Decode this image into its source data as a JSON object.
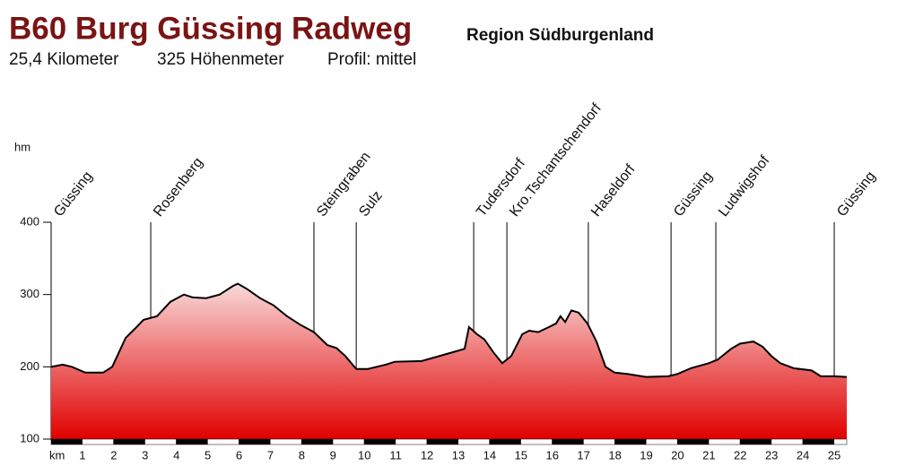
{
  "chart_data": {
    "type": "area",
    "title": "B60 Burg Güssing Radweg",
    "region": "Region Südburgenland",
    "stats": [
      "25,4 Kilometer",
      "325 Höhenmeter",
      "Profil: mittel"
    ],
    "y_label": "hm",
    "x_label": "km",
    "x": [
      0,
      0.37,
      0.66,
      1.09,
      1.66,
      1.95,
      2.38,
      2.66,
      2.95,
      3.38,
      3.81,
      4.24,
      4.52,
      4.95,
      5.38,
      5.81,
      5.96,
      6.24,
      6.67,
      7.1,
      7.53,
      7.96,
      8.39,
      8.82,
      9.11,
      9.39,
      9.74,
      10.11,
      10.68,
      10.97,
      11.83,
      12.4,
      12.97,
      13.2,
      13.34,
      13.6,
      13.83,
      14.12,
      14.4,
      14.69,
      15.04,
      15.26,
      15.55,
      15.89,
      16.12,
      16.26,
      16.41,
      16.61,
      16.84,
      17.12,
      17.41,
      17.7,
      17.99,
      18.41,
      18.99,
      19.7,
      19.99,
      20.42,
      20.99,
      21.28,
      21.71,
      21.99,
      22.42,
      22.71,
      22.99,
      23.28,
      23.71,
      24.28,
      24.57,
      25,
      25.4
    ],
    "values": [
      200,
      203,
      200,
      192,
      192,
      200,
      240,
      252,
      265,
      270,
      290,
      300,
      296,
      295,
      300,
      312,
      315,
      308,
      295,
      285,
      270,
      258,
      248,
      230,
      226,
      215,
      197,
      197,
      203,
      207,
      208,
      215,
      222,
      225,
      255,
      245,
      238,
      220,
      205,
      215,
      245,
      250,
      248,
      255,
      260,
      270,
      262,
      278,
      275,
      260,
      235,
      200,
      192,
      190,
      186,
      187,
      190,
      198,
      205,
      210,
      225,
      232,
      235,
      228,
      215,
      205,
      198,
      195,
      187,
      187,
      186
    ],
    "places": [
      {
        "name": "Güssing",
        "km": 0
      },
      {
        "name": "Rosenberg",
        "km": 3.18
      },
      {
        "name": "Steingraben",
        "km": 8.39
      },
      {
        "name": "Sulz",
        "km": 9.74
      },
      {
        "name": "Tudersdorf",
        "km": 13.49
      },
      {
        "name": "Kro.Tschantschendorf",
        "km": 14.55
      },
      {
        "name": "Haseldorf",
        "km": 17.15
      },
      {
        "name": "Güssing",
        "km": 19.79
      },
      {
        "name": "Ludwigshof",
        "km": 21.22
      },
      {
        "name": "Güssing",
        "km": 25
      }
    ],
    "xlim": [
      0,
      25.4
    ],
    "xticks": [
      1,
      2,
      3,
      4,
      5,
      6,
      7,
      8,
      9,
      10,
      11,
      12,
      13,
      14,
      15,
      16,
      17,
      18,
      19,
      20,
      21,
      22,
      23,
      24,
      25
    ],
    "ylim": [
      100,
      400
    ],
    "yticks": [
      100,
      200,
      300,
      400
    ],
    "color": "#e00000"
  }
}
